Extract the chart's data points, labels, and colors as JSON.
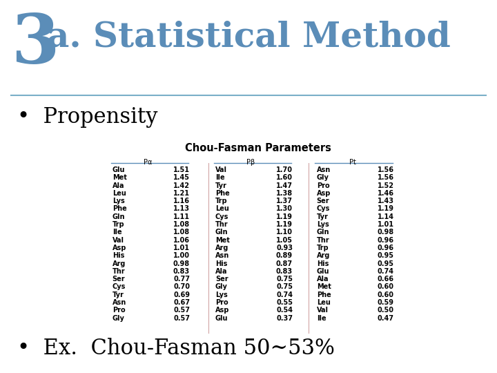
{
  "title_3": "3",
  "title_rest": "a. Statistical Method",
  "title_color": "#5b8db8",
  "title_3_fontsize": 72,
  "title_rest_fontsize": 36,
  "bullet1": "Propensity",
  "bullet2": "Ex.  Chou-Fasman 50~53%",
  "bullet_fontsize": 22,
  "table_title": "Chou-Fasman Parameters",
  "col_headers": [
    "Pα",
    "Pβ",
    "Pt"
  ],
  "pa_data": [
    [
      "Glu",
      1.51
    ],
    [
      "Met",
      1.45
    ],
    [
      "Ala",
      1.42
    ],
    [
      "Leu",
      1.21
    ],
    [
      "Lys",
      1.16
    ],
    [
      "Phe",
      1.13
    ],
    [
      "Gln",
      1.11
    ],
    [
      "Trp",
      1.08
    ],
    [
      "Ile",
      1.08
    ],
    [
      "Val",
      1.06
    ],
    [
      "Asp",
      1.01
    ],
    [
      "His",
      1.0
    ],
    [
      "Arg",
      0.98
    ],
    [
      "Thr",
      0.83
    ],
    [
      "Ser",
      0.77
    ],
    [
      "Cys",
      0.7
    ],
    [
      "Tyr",
      0.69
    ],
    [
      "Asn",
      0.67
    ],
    [
      "Pro",
      0.57
    ],
    [
      "Gly",
      0.57
    ]
  ],
  "pb_data": [
    [
      "Val",
      1.7
    ],
    [
      "Ile",
      1.6
    ],
    [
      "Tyr",
      1.47
    ],
    [
      "Phe",
      1.38
    ],
    [
      "Trp",
      1.37
    ],
    [
      "Leu",
      1.3
    ],
    [
      "Cys",
      1.19
    ],
    [
      "Thr",
      1.19
    ],
    [
      "Gln",
      1.1
    ],
    [
      "Met",
      1.05
    ],
    [
      "Arg",
      0.93
    ],
    [
      "Asn",
      0.89
    ],
    [
      "His",
      0.87
    ],
    [
      "Ala",
      0.83
    ],
    [
      "Ser",
      0.75
    ],
    [
      "Gly",
      0.75
    ],
    [
      "Lys",
      0.74
    ],
    [
      "Pro",
      0.55
    ],
    [
      "Asp",
      0.54
    ],
    [
      "Glu",
      0.37
    ]
  ],
  "pt_data": [
    [
      "Asn",
      1.56
    ],
    [
      "Gly",
      1.56
    ],
    [
      "Pro",
      1.52
    ],
    [
      "Asp",
      1.46
    ],
    [
      "Ser",
      1.43
    ],
    [
      "Cys",
      1.19
    ],
    [
      "Tyr",
      1.14
    ],
    [
      "Lys",
      1.01
    ],
    [
      "Gln",
      0.98
    ],
    [
      "Thr",
      0.96
    ],
    [
      "Trp",
      0.96
    ],
    [
      "Arg",
      0.95
    ],
    [
      "His",
      0.95
    ],
    [
      "Glu",
      0.74
    ],
    [
      "Ala",
      0.66
    ],
    [
      "Met",
      0.6
    ],
    [
      "Phe",
      0.6
    ],
    [
      "Leu",
      0.59
    ],
    [
      "Val",
      0.5
    ],
    [
      "Ile",
      0.47
    ]
  ],
  "bg_color": "#ffffff",
  "line_color": "#7aafc8",
  "separator_color": "#cc9999"
}
